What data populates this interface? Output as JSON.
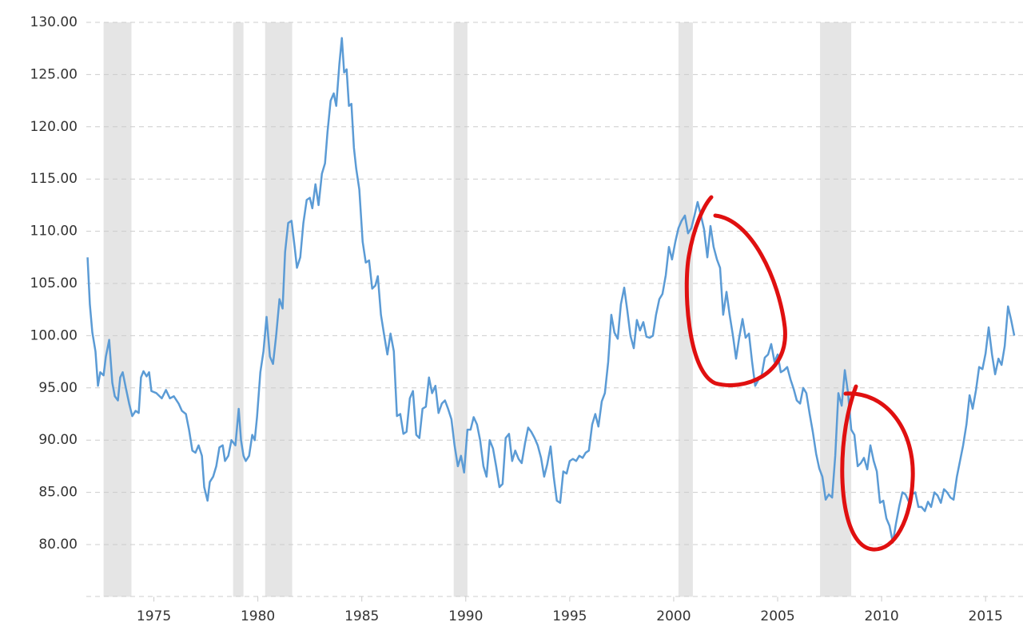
{
  "chart_data": {
    "type": "line",
    "x": [
      1971.81,
      1971.92,
      1972.04,
      1972.19,
      1972.31,
      1972.42,
      1972.58,
      1972.69,
      1972.85,
      1973.0,
      1973.12,
      1973.27,
      1973.38,
      1973.5,
      1973.65,
      1973.81,
      1973.96,
      1974.12,
      1974.27,
      1974.38,
      1974.5,
      1974.65,
      1974.77,
      1974.88,
      1975.12,
      1975.38,
      1975.58,
      1975.77,
      1975.96,
      1976.19,
      1976.35,
      1976.54,
      1976.69,
      1976.85,
      1977.0,
      1977.15,
      1977.31,
      1977.42,
      1977.58,
      1977.69,
      1977.85,
      1978.0,
      1978.15,
      1978.31,
      1978.42,
      1978.58,
      1978.73,
      1978.92,
      1979.08,
      1979.19,
      1979.31,
      1979.42,
      1979.58,
      1979.73,
      1979.85,
      1979.96,
      1980.12,
      1980.27,
      1980.42,
      1980.58,
      1980.73,
      1980.88,
      1981.04,
      1981.19,
      1981.31,
      1981.46,
      1981.62,
      1981.77,
      1981.88,
      1982.04,
      1982.19,
      1982.35,
      1982.5,
      1982.62,
      1982.77,
      1982.92,
      1983.08,
      1983.23,
      1983.35,
      1983.5,
      1983.65,
      1983.77,
      1983.92,
      1984.04,
      1984.15,
      1984.27,
      1984.38,
      1984.5,
      1984.62,
      1984.73,
      1984.88,
      1985.04,
      1985.19,
      1985.35,
      1985.5,
      1985.65,
      1985.77,
      1985.92,
      1986.08,
      1986.23,
      1986.38,
      1986.54,
      1986.69,
      1986.85,
      1987.0,
      1987.15,
      1987.31,
      1987.46,
      1987.62,
      1987.77,
      1987.92,
      1988.08,
      1988.23,
      1988.38,
      1988.54,
      1988.69,
      1988.85,
      1989.0,
      1989.15,
      1989.31,
      1989.46,
      1989.62,
      1989.77,
      1989.92,
      1990.08,
      1990.23,
      1990.38,
      1990.54,
      1990.69,
      1990.85,
      1991.0,
      1991.15,
      1991.31,
      1991.46,
      1991.62,
      1991.77,
      1991.92,
      1992.08,
      1992.23,
      1992.38,
      1992.54,
      1992.69,
      1992.85,
      1993.0,
      1993.15,
      1993.31,
      1993.46,
      1993.62,
      1993.77,
      1993.92,
      1994.08,
      1994.23,
      1994.38,
      1994.54,
      1994.69,
      1994.85,
      1995.0,
      1995.15,
      1995.31,
      1995.46,
      1995.62,
      1995.77,
      1995.92,
      1996.08,
      1996.23,
      1996.38,
      1996.54,
      1996.69,
      1996.85,
      1997.0,
      1997.15,
      1997.31,
      1997.46,
      1997.62,
      1997.77,
      1997.92,
      1998.08,
      1998.23,
      1998.38,
      1998.54,
      1998.69,
      1998.85,
      1999.0,
      1999.15,
      1999.31,
      1999.46,
      1999.62,
      1999.77,
      1999.92,
      2000.08,
      2000.23,
      2000.38,
      2000.54,
      2000.69,
      2000.85,
      2001.0,
      2001.15,
      2001.31,
      2001.46,
      2001.62,
      2001.77,
      2001.92,
      2002.08,
      2002.23,
      2002.38,
      2002.54,
      2002.69,
      2002.85,
      2003.0,
      2003.15,
      2003.31,
      2003.46,
      2003.62,
      2003.77,
      2003.92,
      2004.08,
      2004.23,
      2004.38,
      2004.54,
      2004.69,
      2004.85,
      2005.0,
      2005.15,
      2005.31,
      2005.46,
      2005.62,
      2005.77,
      2005.92,
      2006.08,
      2006.23,
      2006.38,
      2006.54,
      2006.69,
      2006.85,
      2007.0,
      2007.15,
      2007.31,
      2007.46,
      2007.62,
      2007.77,
      2007.92,
      2008.08,
      2008.23,
      2008.38,
      2008.54,
      2008.69,
      2008.85,
      2009.0,
      2009.15,
      2009.31,
      2009.46,
      2009.62,
      2009.77,
      2009.92,
      2010.08,
      2010.23,
      2010.38,
      2010.54,
      2010.69,
      2010.85,
      2011.0,
      2011.15,
      2011.31,
      2011.46,
      2011.62,
      2011.77,
      2011.92,
      2012.08,
      2012.23,
      2012.38,
      2012.54,
      2012.69,
      2012.85,
      2013.0,
      2013.15,
      2013.31,
      2013.46,
      2013.62,
      2013.77,
      2013.92,
      2014.08,
      2014.23,
      2014.38,
      2014.54,
      2014.69,
      2014.85,
      2015.0,
      2015.15,
      2015.31,
      2015.46,
      2015.62,
      2015.77,
      2015.92,
      2016.08,
      2016.23,
      2016.38
    ],
    "series": [
      {
        "color": "#5b9bd5",
        "values": [
          107.5,
          103,
          100.3,
          98.5,
          95.2,
          96.5,
          96.2,
          98,
          99.6,
          95.5,
          94.2,
          93.8,
          96,
          96.5,
          95,
          93.5,
          92.3,
          92.8,
          92.6,
          96,
          96.6,
          96.1,
          96.5,
          94.7,
          94.5,
          94.0,
          94.8,
          94.0,
          94.2,
          93.5,
          92.8,
          92.5,
          91,
          89,
          88.8,
          89.5,
          88.5,
          85.5,
          84.2,
          86,
          86.5,
          87.5,
          89.3,
          89.5,
          88,
          88.5,
          90,
          89.5,
          93,
          90,
          88.5,
          88,
          88.5,
          90.5,
          90,
          92.2,
          96.5,
          98.5,
          101.8,
          98,
          97.3,
          100,
          103.5,
          102.6,
          108,
          110.8,
          111,
          108.5,
          106.5,
          107.5,
          110.8,
          113,
          113.2,
          112.2,
          114.5,
          112.5,
          115.5,
          116.5,
          119.5,
          122.5,
          123.2,
          122,
          126,
          128.5,
          125.2,
          125.5,
          122,
          122.2,
          118,
          116,
          114,
          109,
          107,
          107.2,
          104.5,
          104.8,
          105.7,
          102,
          100,
          98.2,
          100.2,
          98.5,
          92.3,
          92.5,
          90.6,
          90.8,
          94,
          94.7,
          90.5,
          90.2,
          93,
          93.2,
          96,
          94.5,
          95.2,
          92.6,
          93.5,
          93.8,
          93,
          92,
          89.5,
          87.5,
          88.5,
          86.9,
          91,
          91,
          92.2,
          91.5,
          90,
          87.5,
          86.5,
          90,
          89.2,
          87.5,
          85.5,
          85.8,
          90.2,
          90.6,
          88,
          89,
          88.2,
          87.8,
          89.7,
          91.2,
          90.8,
          90.2,
          89.5,
          88.3,
          86.5,
          87.7,
          89.4,
          86.5,
          84.2,
          84.0,
          87,
          86.8,
          88,
          88.2,
          88,
          88.5,
          88.3,
          88.8,
          89,
          91.5,
          92.5,
          91.3,
          93.7,
          94.5,
          97.5,
          102,
          100.3,
          99.7,
          103,
          104.6,
          102.4,
          100,
          98.8,
          101.5,
          100.5,
          101.3,
          99.9,
          99.8,
          100,
          102,
          103.5,
          104,
          105.8,
          108.5,
          107.3,
          109,
          110.3,
          111,
          111.5,
          109.8,
          110.3,
          111.5,
          112.8,
          111.5,
          110.2,
          107.5,
          110.5,
          108.5,
          107.3,
          106.5,
          102,
          104.2,
          102,
          100,
          97.8,
          99.8,
          101.6,
          99.8,
          100.2,
          97.5,
          95.2,
          95.8,
          96.2,
          97.9,
          98.2,
          99.2,
          97.5,
          98.2,
          96.5,
          96.7,
          97,
          95.8,
          94.9,
          93.8,
          93.5,
          95,
          94.5,
          92.5,
          90.8,
          88.7,
          87.3,
          86.5,
          84.3,
          84.8,
          84.5,
          88.5,
          94.5,
          93.3,
          96.7,
          94.6,
          91,
          90.5,
          87.5,
          87.8,
          88.3,
          87.2,
          89.5,
          88,
          87,
          84,
          84.2,
          82.5,
          81.8,
          80.2,
          82,
          83.7,
          85,
          84.8,
          84.1,
          84.8,
          85,
          83.6,
          83.6,
          83.2,
          84.1,
          83.6,
          85,
          84.7,
          84,
          85.3,
          85,
          84.5,
          84.3,
          86.5,
          88,
          89.5,
          91.5,
          94.3,
          93,
          94.8,
          97,
          96.8,
          98.3,
          100.8,
          98.2,
          96.3,
          97.8,
          97.2,
          99,
          102.8,
          101.5,
          100
        ]
      }
    ],
    "shaded_ranges": [
      [
        1972.58,
        1973.92
      ],
      [
        1978.81,
        1979.31
      ],
      [
        1980.35,
        1981.65
      ],
      [
        1989.42,
        1990.08
      ],
      [
        2000.23,
        2000.92
      ],
      [
        2007.04,
        2008.54
      ]
    ],
    "shade_color": "#e5e5e5",
    "xlim": [
      1971.75,
      2016.8
    ],
    "xticks": [
      1975,
      1980,
      1985,
      1990,
      1995,
      2000,
      2005,
      2010,
      2015
    ],
    "ylim": [
      75,
      130
    ],
    "yticks": [
      {
        "value": 80,
        "label": "80.00"
      },
      {
        "value": 85,
        "label": "85.00"
      },
      {
        "value": 90,
        "label": "90.00"
      },
      {
        "value": 95,
        "label": "95.00"
      },
      {
        "value": 100,
        "label": "100.00"
      },
      {
        "value": 105,
        "label": "105.00"
      },
      {
        "value": 110,
        "label": "110.00"
      },
      {
        "value": 115,
        "label": "115.00"
      },
      {
        "value": 120,
        "label": "120.00"
      },
      {
        "value": 125,
        "label": "125.00"
      },
      {
        "value": 130,
        "label": "130.00"
      }
    ],
    "grid": true
  }
}
